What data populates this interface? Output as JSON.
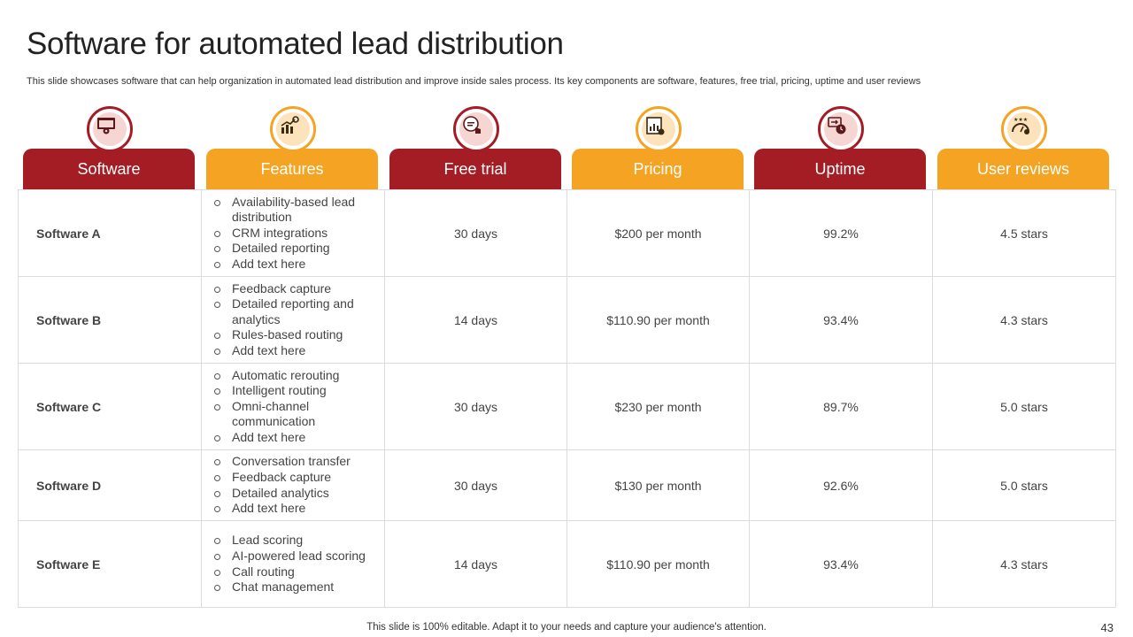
{
  "slide": {
    "title": "Software for automated lead distribution",
    "subtitle": "This slide showcases software that can help organization in automated lead distribution and improve inside sales process. Its key components are software, features, free trial, pricing, uptime and user reviews",
    "footer": "This slide is 100% editable. Adapt it to your needs and capture your audience's attention.",
    "page_number": "43"
  },
  "colors": {
    "red": "#a51d24",
    "orange": "#f4a422"
  },
  "columns": [
    {
      "label": "Software",
      "icon": "browser-settings-icon",
      "color": "red"
    },
    {
      "label": "Features",
      "icon": "chart-gear-icon",
      "color": "orange"
    },
    {
      "label": "Free trial",
      "icon": "free-trial-hand-icon",
      "color": "red"
    },
    {
      "label": "Pricing",
      "icon": "pricing-report-icon",
      "color": "orange"
    },
    {
      "label": "Uptime",
      "icon": "uptime-clock-icon",
      "color": "red"
    },
    {
      "label": "User reviews",
      "icon": "rating-gauge-icon",
      "color": "orange"
    }
  ],
  "rows": [
    {
      "name": "Software A",
      "features": [
        "Availability-based lead distribution",
        "CRM integrations",
        "Detailed reporting",
        "Add text here"
      ],
      "trial": "30 days",
      "pricing": "$200 per month",
      "uptime": "99.2%",
      "reviews": "4.5 stars"
    },
    {
      "name": "Software B",
      "features": [
        "Feedback capture",
        "Detailed reporting and analytics",
        "Rules-based routing",
        "Add text here"
      ],
      "trial": "14 days",
      "pricing": "$110.90 per month",
      "uptime": "93.4%",
      "reviews": "4.3 stars"
    },
    {
      "name": "Software C",
      "features": [
        "Automatic rerouting",
        "Intelligent routing",
        "Omni-channel communication",
        "Add text here"
      ],
      "trial": "30 days",
      "pricing": "$230 per month",
      "uptime": "89.7%",
      "reviews": "5.0 stars"
    },
    {
      "name": "Software D",
      "features": [
        "Conversation transfer",
        "Feedback capture",
        "Detailed analytics",
        "Add text here"
      ],
      "trial": "30 days",
      "pricing": "$130 per month",
      "uptime": "92.6%",
      "reviews": "5.0 stars"
    },
    {
      "name": "Software E",
      "features": [
        "Lead scoring",
        "AI-powered lead scoring",
        "Call routing",
        "Chat management"
      ],
      "trial": "14 days",
      "pricing": "$110.90 per month",
      "uptime": "93.4%",
      "reviews": "4.3 stars"
    }
  ]
}
